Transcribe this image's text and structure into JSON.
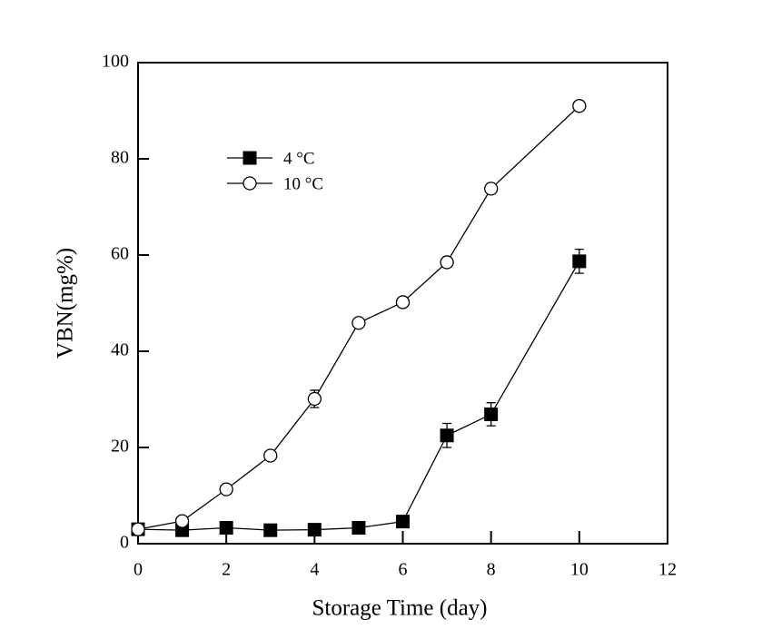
{
  "chart_data": {
    "type": "line",
    "x_label": "Storage Time (day)",
    "y_label": "VBN(mg%)",
    "xlim": [
      0,
      12
    ],
    "xticks": [
      0,
      2,
      4,
      6,
      8,
      10,
      12
    ],
    "ylim": [
      0,
      100
    ],
    "yticks": [
      0,
      20,
      40,
      60,
      80,
      100
    ],
    "legend": "upper left",
    "x": [
      0,
      1,
      2,
      3,
      4,
      5,
      6,
      7,
      8,
      10
    ],
    "series": [
      {
        "name": "4 °C",
        "color": "#000000",
        "marker": "square",
        "values": [
          3.0,
          2.8,
          3.3,
          2.8,
          2.9,
          3.3,
          4.6,
          22.5,
          26.9,
          58.7
        ],
        "errors": [
          null,
          null,
          null,
          null,
          null,
          null,
          1.0,
          2.5,
          2.4,
          2.5
        ]
      },
      {
        "name": "10 °C",
        "color": "#000000",
        "marker": "open-circle",
        "values": [
          3.0,
          4.7,
          11.3,
          18.3,
          30.1,
          45.9,
          50.2,
          58.5,
          73.8,
          91.0
        ],
        "errors": [
          null,
          null,
          null,
          null,
          1.8,
          null,
          null,
          null,
          null,
          null
        ]
      }
    ]
  }
}
